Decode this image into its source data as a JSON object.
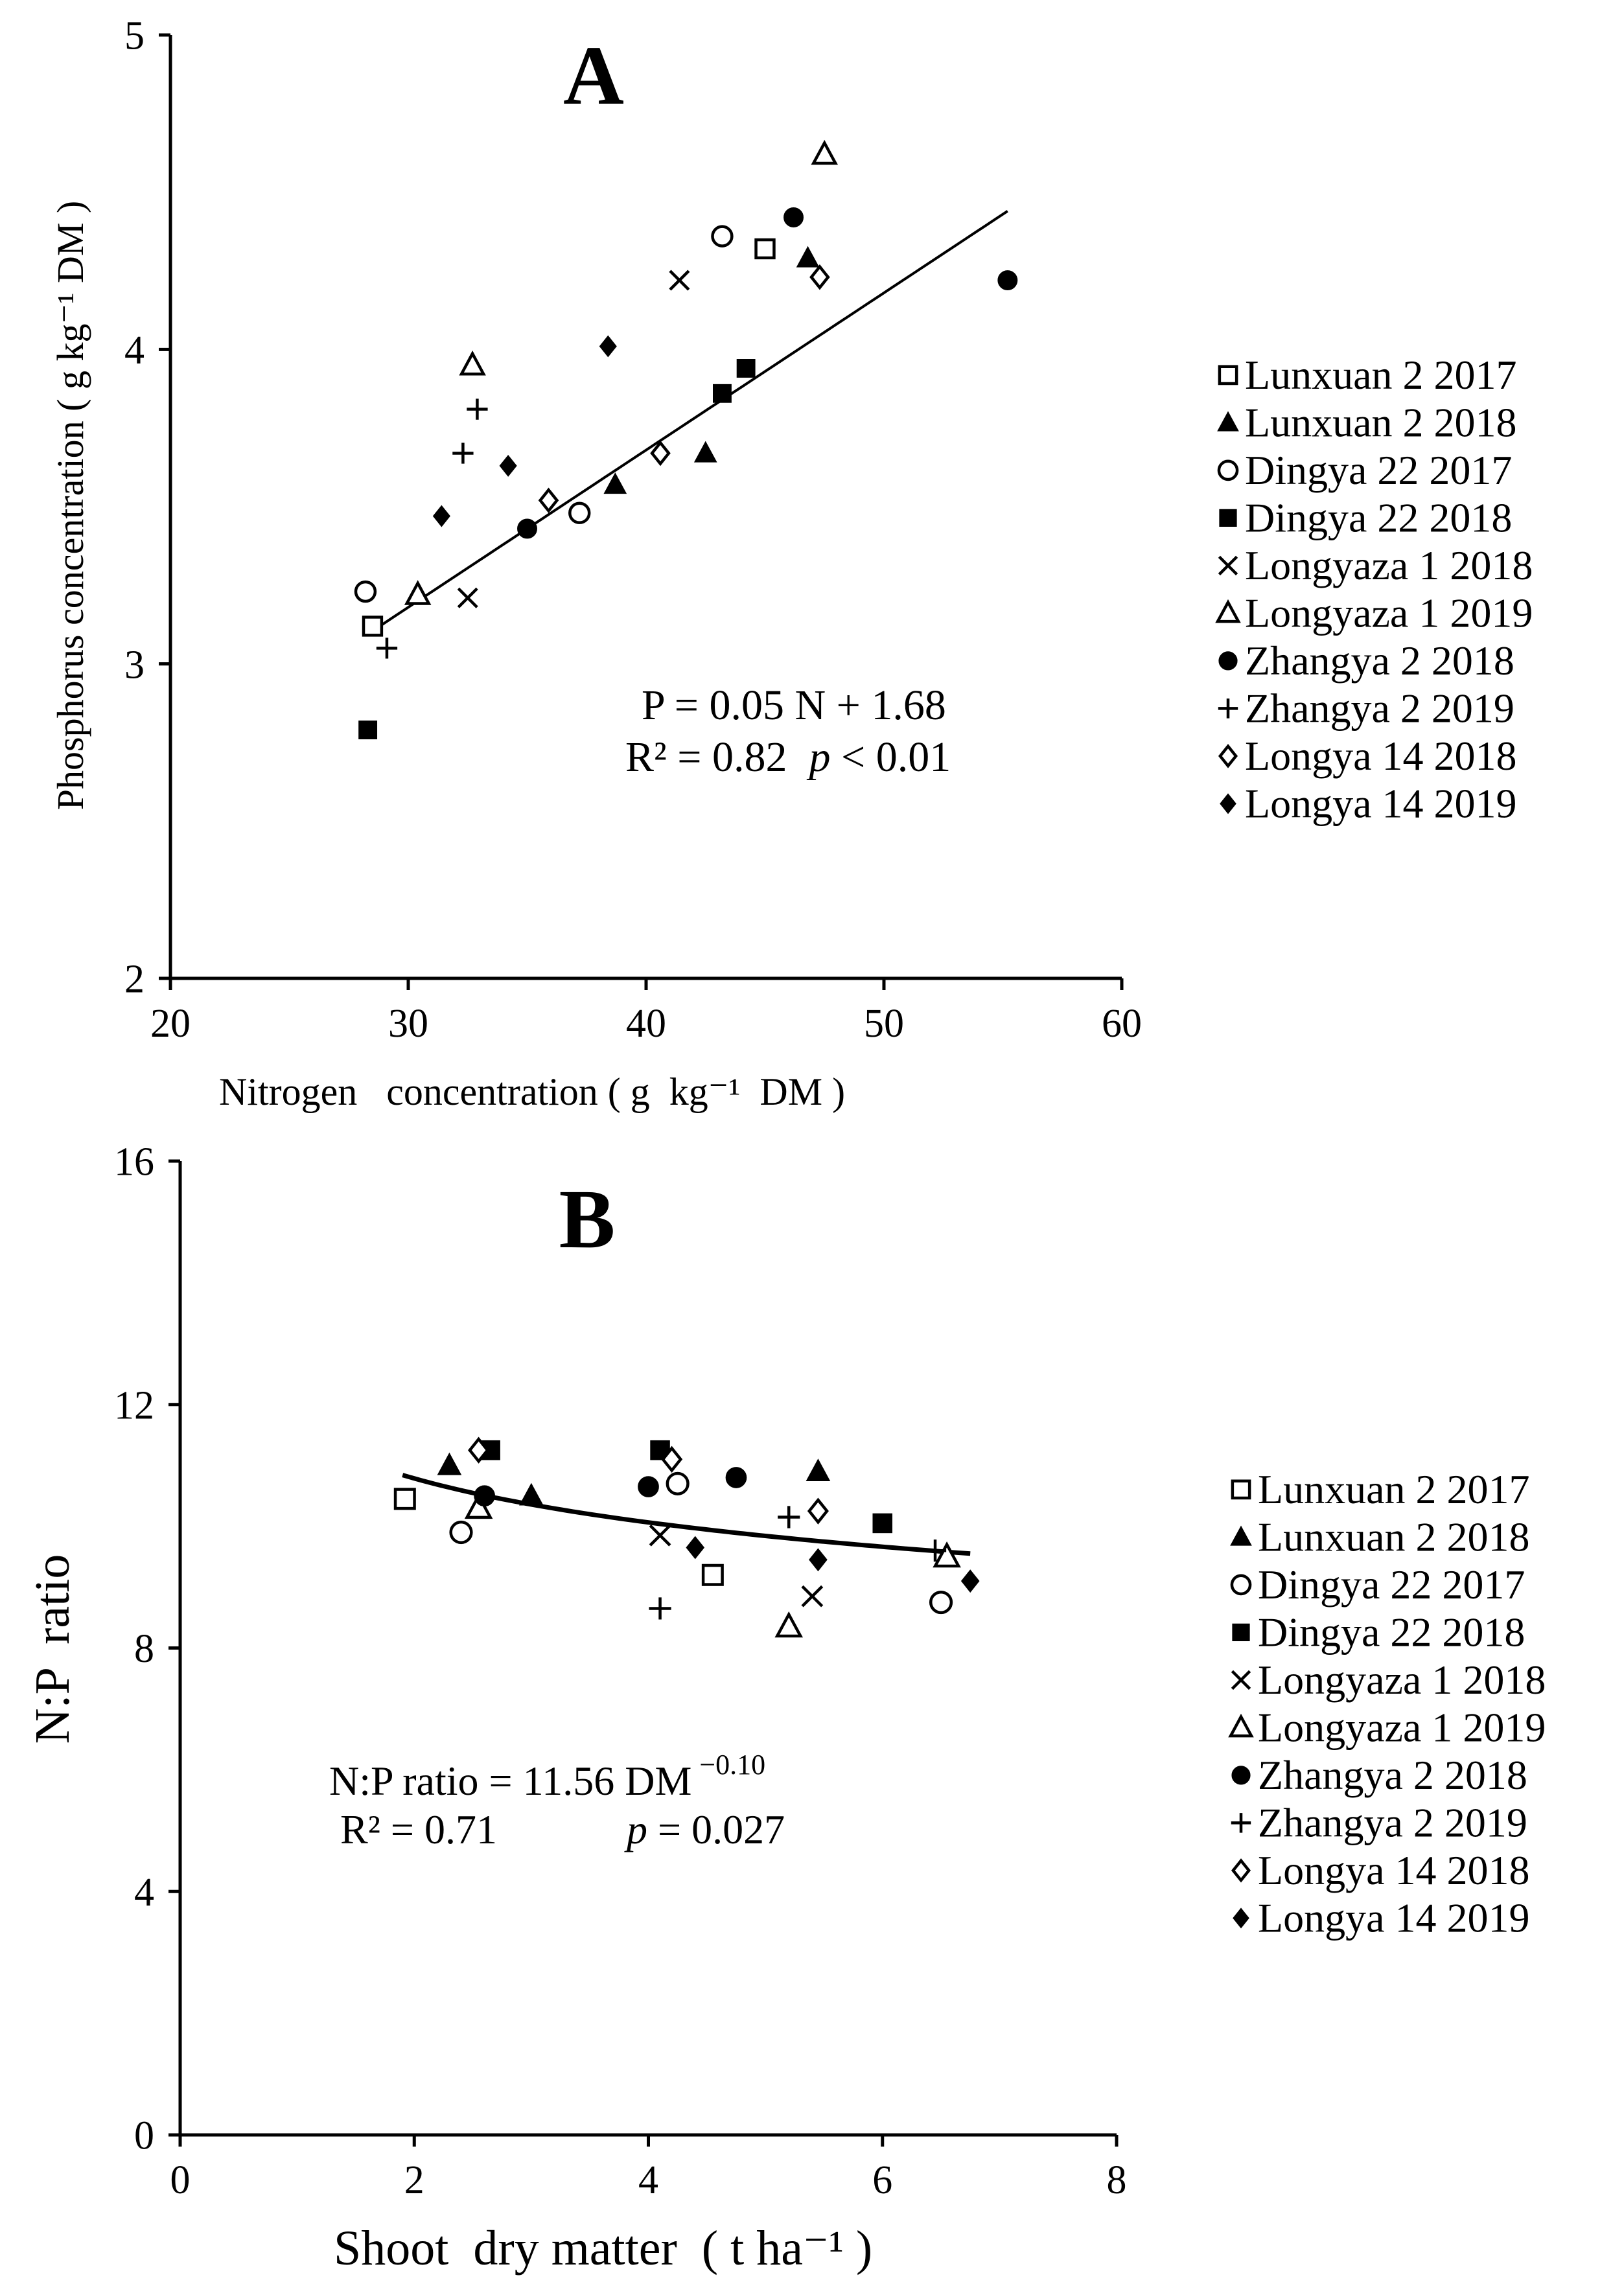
{
  "colors": {
    "ink": "#000000",
    "background": "#ffffff"
  },
  "chart_data": [
    {
      "type": "scatter",
      "panel_label": "A",
      "xlabel": "Nitrogen   concentration ( g  kg⁻¹  DM )",
      "ylabel": "Phosphorus concentration ( g kg⁻¹ DM )",
      "xlim": [
        20,
        60
      ],
      "ylim": [
        2,
        5
      ],
      "xticks": [
        20,
        30,
        40,
        50,
        60
      ],
      "yticks": [
        2,
        3,
        4,
        5
      ],
      "equation": "P = 0.05 N + 1.68",
      "r2_text": "R² = 0.82",
      "p_label": "p",
      "p_text": " < 0.01",
      "fit": {
        "kind": "linear",
        "slope": 0.05,
        "intercept": 1.68,
        "x_range": [
          28.5,
          55.2
        ]
      },
      "series": [
        {
          "name": "Lunxuan 2 2017",
          "marker": "square-open",
          "points": [
            [
              28.5,
              3.12
            ],
            [
              45,
              4.32
            ]
          ]
        },
        {
          "name": "Lunxuan 2 2018",
          "marker": "triangle-filled",
          "points": [
            [
              38.7,
              3.57
            ],
            [
              42.5,
              3.67
            ],
            [
              46.8,
              4.29
            ]
          ]
        },
        {
          "name": "Dingya 22 2017",
          "marker": "circle-open",
          "points": [
            [
              28.2,
              3.23
            ],
            [
              37.2,
              3.48
            ],
            [
              43.2,
              4.36
            ]
          ]
        },
        {
          "name": "Dingya 22 2018",
          "marker": "square-filled",
          "points": [
            [
              28.3,
              2.79
            ],
            [
              43.2,
              3.86
            ],
            [
              44.2,
              3.94
            ]
          ]
        },
        {
          "name": "Longyaza 1 2018",
          "marker": "cross",
          "points": [
            [
              32.5,
              3.21
            ],
            [
              41.4,
              4.22
            ]
          ]
        },
        {
          "name": "Longyaza 1 2019",
          "marker": "triangle-open",
          "points": [
            [
              30.4,
              3.22
            ],
            [
              32.7,
              3.95
            ],
            [
              47.5,
              4.62
            ]
          ]
        },
        {
          "name": "Zhangya 2 2018",
          "marker": "circle-filled",
          "points": [
            [
              35,
              3.43
            ],
            [
              46.2,
              4.42
            ],
            [
              55.2,
              4.22
            ]
          ]
        },
        {
          "name": "Zhangya 2 2019",
          "marker": "plus",
          "points": [
            [
              29.1,
              3.05
            ],
            [
              32.3,
              3.67
            ],
            [
              32.9,
              3.81
            ]
          ]
        },
        {
          "name": "Longya 14 2018",
          "marker": "diamond-open",
          "points": [
            [
              35.9,
              3.52
            ],
            [
              40.6,
              3.67
            ],
            [
              47.3,
              4.23
            ]
          ]
        },
        {
          "name": "Longya 14 2019",
          "marker": "diamond-filled",
          "points": [
            [
              31.4,
              3.47
            ],
            [
              34.2,
              3.63
            ],
            [
              38.4,
              4.01
            ]
          ]
        }
      ]
    },
    {
      "type": "scatter",
      "panel_label": "B",
      "xlabel": "Shoot  dry matter  ( t ha⁻¹ )",
      "ylabel": "N:P  ratio",
      "xlim": [
        0,
        8
      ],
      "ylim": [
        0,
        16
      ],
      "xticks": [
        0,
        2,
        4,
        6,
        8
      ],
      "yticks": [
        0,
        4,
        8,
        12,
        16
      ],
      "equation_main": "N:P ratio = 11.56 DM",
      "equation_exp": "−0.10",
      "r2_text": "R² = 0.71",
      "p_label": "p",
      "p_text": " = 0.027",
      "fit": {
        "kind": "power",
        "a": 11.56,
        "b": -0.1,
        "x_range": [
          1.9,
          6.75
        ]
      },
      "series": [
        {
          "name": "Lunxuan 2 2017",
          "marker": "square-open",
          "points": [
            [
              1.92,
              10.45
            ],
            [
              4.55,
              9.2
            ]
          ]
        },
        {
          "name": "Lunxuan 2 2018",
          "marker": "triangle-filled",
          "points": [
            [
              2.3,
              11.0
            ],
            [
              3.0,
              10.5
            ],
            [
              5.45,
              10.9
            ]
          ]
        },
        {
          "name": "Dingya 22 2017",
          "marker": "circle-open",
          "points": [
            [
              2.4,
              9.9
            ],
            [
              4.25,
              10.7
            ],
            [
              6.5,
              8.75
            ]
          ]
        },
        {
          "name": "Dingya 22 2018",
          "marker": "square-filled",
          "points": [
            [
              2.65,
              11.25
            ],
            [
              4.1,
              11.25
            ],
            [
              6.0,
              10.05
            ]
          ]
        },
        {
          "name": "Longyaza 1 2018",
          "marker": "cross",
          "points": [
            [
              4.1,
              9.85
            ],
            [
              5.4,
              8.85
            ]
          ]
        },
        {
          "name": "Longyaza 1 2019",
          "marker": "triangle-open",
          "points": [
            [
              2.55,
              10.3
            ],
            [
              5.2,
              8.35
            ],
            [
              6.55,
              9.5
            ]
          ]
        },
        {
          "name": "Zhangya 2 2018",
          "marker": "circle-filled",
          "points": [
            [
              2.6,
              10.5
            ],
            [
              4.0,
              10.65
            ],
            [
              4.75,
              10.8
            ]
          ]
        },
        {
          "name": "Zhangya 2 2019",
          "marker": "plus",
          "points": [
            [
              4.1,
              8.65
            ],
            [
              5.2,
              10.15
            ],
            [
              6.45,
              9.6
            ]
          ]
        },
        {
          "name": "Longya 14 2018",
          "marker": "diamond-open",
          "points": [
            [
              2.55,
              11.25
            ],
            [
              4.2,
              11.1
            ],
            [
              5.45,
              10.25
            ]
          ]
        },
        {
          "name": "Longya 14 2019",
          "marker": "diamond-filled",
          "points": [
            [
              4.4,
              9.65
            ],
            [
              5.45,
              9.45
            ],
            [
              6.75,
              9.1
            ]
          ]
        }
      ]
    }
  ]
}
